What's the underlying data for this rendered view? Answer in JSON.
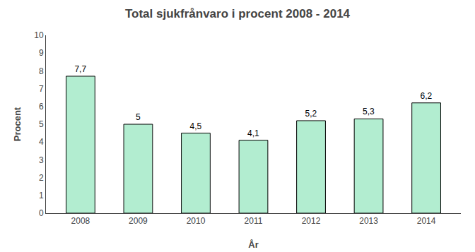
{
  "chart_data": {
    "type": "bar",
    "title": "Total sjukfrånvaro i procent 2008 - 2014",
    "xlabel": "År",
    "ylabel": "Procent",
    "categories": [
      "2008",
      "2009",
      "2010",
      "2011",
      "2012",
      "2013",
      "2014"
    ],
    "values": [
      7.7,
      5.0,
      4.5,
      4.1,
      5.2,
      5.3,
      6.2
    ],
    "value_labels": [
      "7,7",
      "5",
      "4,5",
      "4,1",
      "5,2",
      "5,3",
      "6,2"
    ],
    "data_labels": true,
    "color": "#b2edd0",
    "ylim": [
      0,
      10
    ],
    "yticks": [
      0,
      1,
      2,
      3,
      4,
      5,
      6,
      7,
      8,
      9,
      10
    ],
    "grid": false
  }
}
